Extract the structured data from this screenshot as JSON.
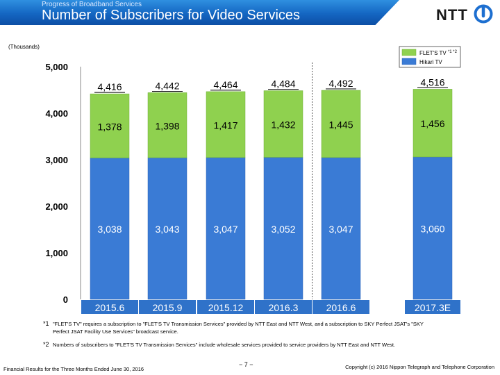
{
  "header": {
    "subtitle": "Progress of Broadband Services",
    "title": "Number of Subscribers for Video Services",
    "logo_text": "NTT"
  },
  "chart_data": {
    "type": "bar",
    "stacked": true,
    "unit_label": "(Thousands)",
    "categories": [
      "2015.6",
      "2015.9",
      "2015.12",
      "2016.3",
      "2016.6",
      "2017.3E"
    ],
    "series": [
      {
        "name": "Hikari TV",
        "values": [
          3038,
          3043,
          3047,
          3052,
          3047,
          3060
        ],
        "color": "#3a7bd5"
      },
      {
        "name": "FLET'S TV",
        "name_sup": "*1 *2",
        "values": [
          1378,
          1398,
          1417,
          1432,
          1445,
          1456
        ],
        "color": "#8fd14f"
      }
    ],
    "totals": [
      4416,
      4442,
      4464,
      4484,
      4492,
      4516
    ],
    "value_labels": {
      "Hikari TV": [
        "3,038",
        "3,043",
        "3,047",
        "3,052",
        "3,047",
        "3,060"
      ],
      "FLET'S TV": [
        "1,378",
        "1,398",
        "1,417",
        "1,432",
        "1,445",
        "1,456"
      ],
      "totals": [
        "4,416",
        "4,442",
        "4,464",
        "4,484",
        "4,492",
        "4,516"
      ]
    },
    "ylim": [
      0,
      5000
    ],
    "yticks": [
      0,
      1000,
      2000,
      3000,
      4000,
      5000
    ],
    "ytick_labels": [
      "0",
      "1,000",
      "2,000",
      "3,000",
      "4,000",
      "5,000"
    ],
    "grid": false,
    "legend_position": "top-right",
    "divider_after_category": "2016.3"
  },
  "notes": [
    {
      "mark": "*1",
      "text": "\"FLET'S TV\" requires a subscription to \"FLET'S TV Transmission Services\" provided by NTT East and NTT West, and a subscription to SKY Perfect JSAT's \"SKY Perfect JSAT Facility Use Services\" broadcast service."
    },
    {
      "mark": "*2",
      "text": "Numbers of subscribers to \"FLET'S TV Transmission Services\" include wholesale services provided to service providers by NTT East and NTT West."
    }
  ],
  "footer": {
    "left": "Financial Results for the Three Months Ended June 30, 2016",
    "page": "− 7 −",
    "right": "Copyright (c) 2016 Nippon Telegraph and Telephone Corporation"
  }
}
